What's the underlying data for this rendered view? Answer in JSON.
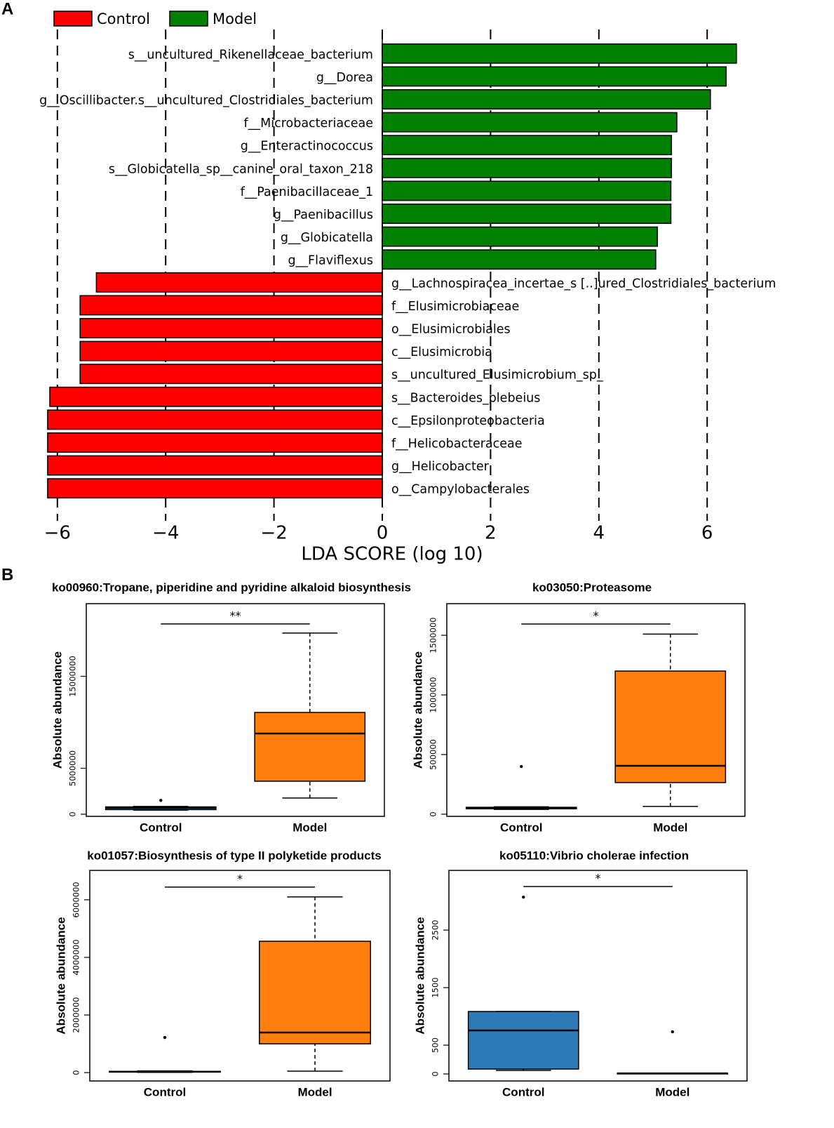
{
  "panel_labels": [
    "A",
    "B"
  ],
  "chart_data": [
    {
      "type": "lda_bar",
      "xlabel": "LDA SCORE (log 10)",
      "categories": [
        "s__uncultured_Rikenellaceae_bacterium",
        "g__Dorea",
        "g__Oscillibacter.s__uncultured_Clostridiales_bacterium",
        "f__Microbacteriaceae",
        "g__Enteractinococcus",
        "s__Globicatella_sp__canine_oral_taxon_218",
        "f__Paenibacillaceae_1",
        "g__Paenibacillus",
        "g__Globicatella",
        "g__Flaviflexus",
        "g__Lachnospiracea_incertae_s [..]ured_Clostridiales_bacterium",
        "f__Elusimicrobiaceae",
        "o__Elusimicrobiales",
        "c__Elusimicrobia",
        "s__uncultured_Elusimicrobium_sp_",
        "s__Bacteroides_plebeius",
        "c__Epsilonproteobacteria",
        "f__Helicobacteraceae",
        "g__Helicobacter",
        "o__Campylobacterales"
      ],
      "series": [
        {
          "name": "Control",
          "color": "#ff0000",
          "values": [
            null,
            null,
            null,
            null,
            null,
            null,
            null,
            null,
            null,
            null,
            -5.28,
            -5.58,
            -5.58,
            -5.58,
            -5.58,
            -6.14,
            -6.18,
            -6.18,
            -6.18,
            -6.18
          ]
        },
        {
          "name": "Model",
          "color": "#008000",
          "values": [
            6.54,
            6.35,
            6.06,
            5.44,
            5.34,
            5.34,
            5.33,
            5.33,
            5.08,
            5.05,
            null,
            null,
            null,
            null,
            null,
            null,
            null,
            null,
            null,
            null
          ]
        }
      ],
      "xlim": [
        -6.25,
        6.6
      ],
      "xticks": [
        {
          "value": -6,
          "label": "−6"
        },
        {
          "value": -4,
          "label": "−4"
        },
        {
          "value": -2,
          "label": "−2"
        },
        0,
        2,
        4,
        6
      ],
      "grid": true,
      "grid_style": "dashed",
      "legend": "top-left"
    },
    {
      "type": "box",
      "title": "ko00960:Tropane, piperidine and pyridine alkaloid biosynthesis",
      "ylabel": "Absolute abundance",
      "categories": [
        "Control",
        "Model"
      ],
      "colors": [
        "#2c7bb6",
        "#ff7f0e"
      ],
      "boxes": [
        {
          "min": 450000,
          "q1": 500000,
          "median": 690000,
          "q3": 800000,
          "max": 850000,
          "outliers": [
            1500000
          ]
        },
        {
          "min": 1760000,
          "q1": 3590000,
          "median": 8780000,
          "q3": 11070000,
          "max": 19700000,
          "outliers": []
        }
      ],
      "ylim": [
        -230000,
        22900000
      ],
      "yticks": [
        0,
        5000000,
        15000000
      ],
      "significance": {
        "label": "**",
        "y": 20700000
      }
    },
    {
      "type": "box",
      "title": "ko03050:Proteasome",
      "ylabel": "Absolute abundance",
      "categories": [
        "Control",
        "Model"
      ],
      "colors": [
        "#2c7bb6",
        "#ff7f0e"
      ],
      "boxes": [
        {
          "min": 40000,
          "q1": 45000,
          "median": 53000,
          "q3": 58000,
          "max": 62000,
          "outliers": [
            400000
          ]
        },
        {
          "min": 65000,
          "q1": 265000,
          "median": 406000,
          "q3": 1200000,
          "max": 1510000,
          "outliers": []
        }
      ],
      "ylim": [
        -18000,
        1765000
      ],
      "yticks": [
        0,
        500000,
        1000000,
        1500000
      ],
      "significance": {
        "label": "*",
        "y": 1594000
      }
    },
    {
      "type": "box",
      "title": "ko01057:Biosynthesis of type II polyketide products",
      "ylabel": "Absolute abundance",
      "categories": [
        "Control",
        "Model"
      ],
      "colors": [
        "#2c7bb6",
        "#ff7f0e"
      ],
      "boxes": [
        {
          "min": 10000,
          "q1": 20000,
          "median": 30000,
          "q3": 45000,
          "max": 60000,
          "outliers": [
            1220000
          ]
        },
        {
          "min": 50000,
          "q1": 1000000,
          "median": 1390000,
          "q3": 4560000,
          "max": 6100000,
          "outliers": []
        }
      ],
      "ylim": [
        -290000,
        7020000
      ],
      "yticks": [
        0,
        2000000,
        4000000,
        6000000
      ],
      "significance": {
        "label": "*",
        "y": 6440000
      }
    },
    {
      "type": "box",
      "title": "ko05110:Vibrio cholerae infection",
      "ylabel": "Absolute abundance",
      "categories": [
        "Control",
        "Model"
      ],
      "colors": [
        "#2c7bb6",
        "#ff7f0e"
      ],
      "boxes": [
        {
          "min": 61,
          "q1": 85,
          "median": 756,
          "q3": 1085,
          "max": 1085,
          "outliers": [
            3073
          ]
        },
        {
          "min": 5,
          "q1": 8,
          "median": 10,
          "q3": 12,
          "max": 15,
          "outliers": [
            732
          ]
        }
      ],
      "ylim": [
        -122,
        3537
      ],
      "yticks": [
        0,
        500,
        1500,
        2500
      ],
      "significance": {
        "label": "*",
        "y": 3256
      }
    }
  ]
}
